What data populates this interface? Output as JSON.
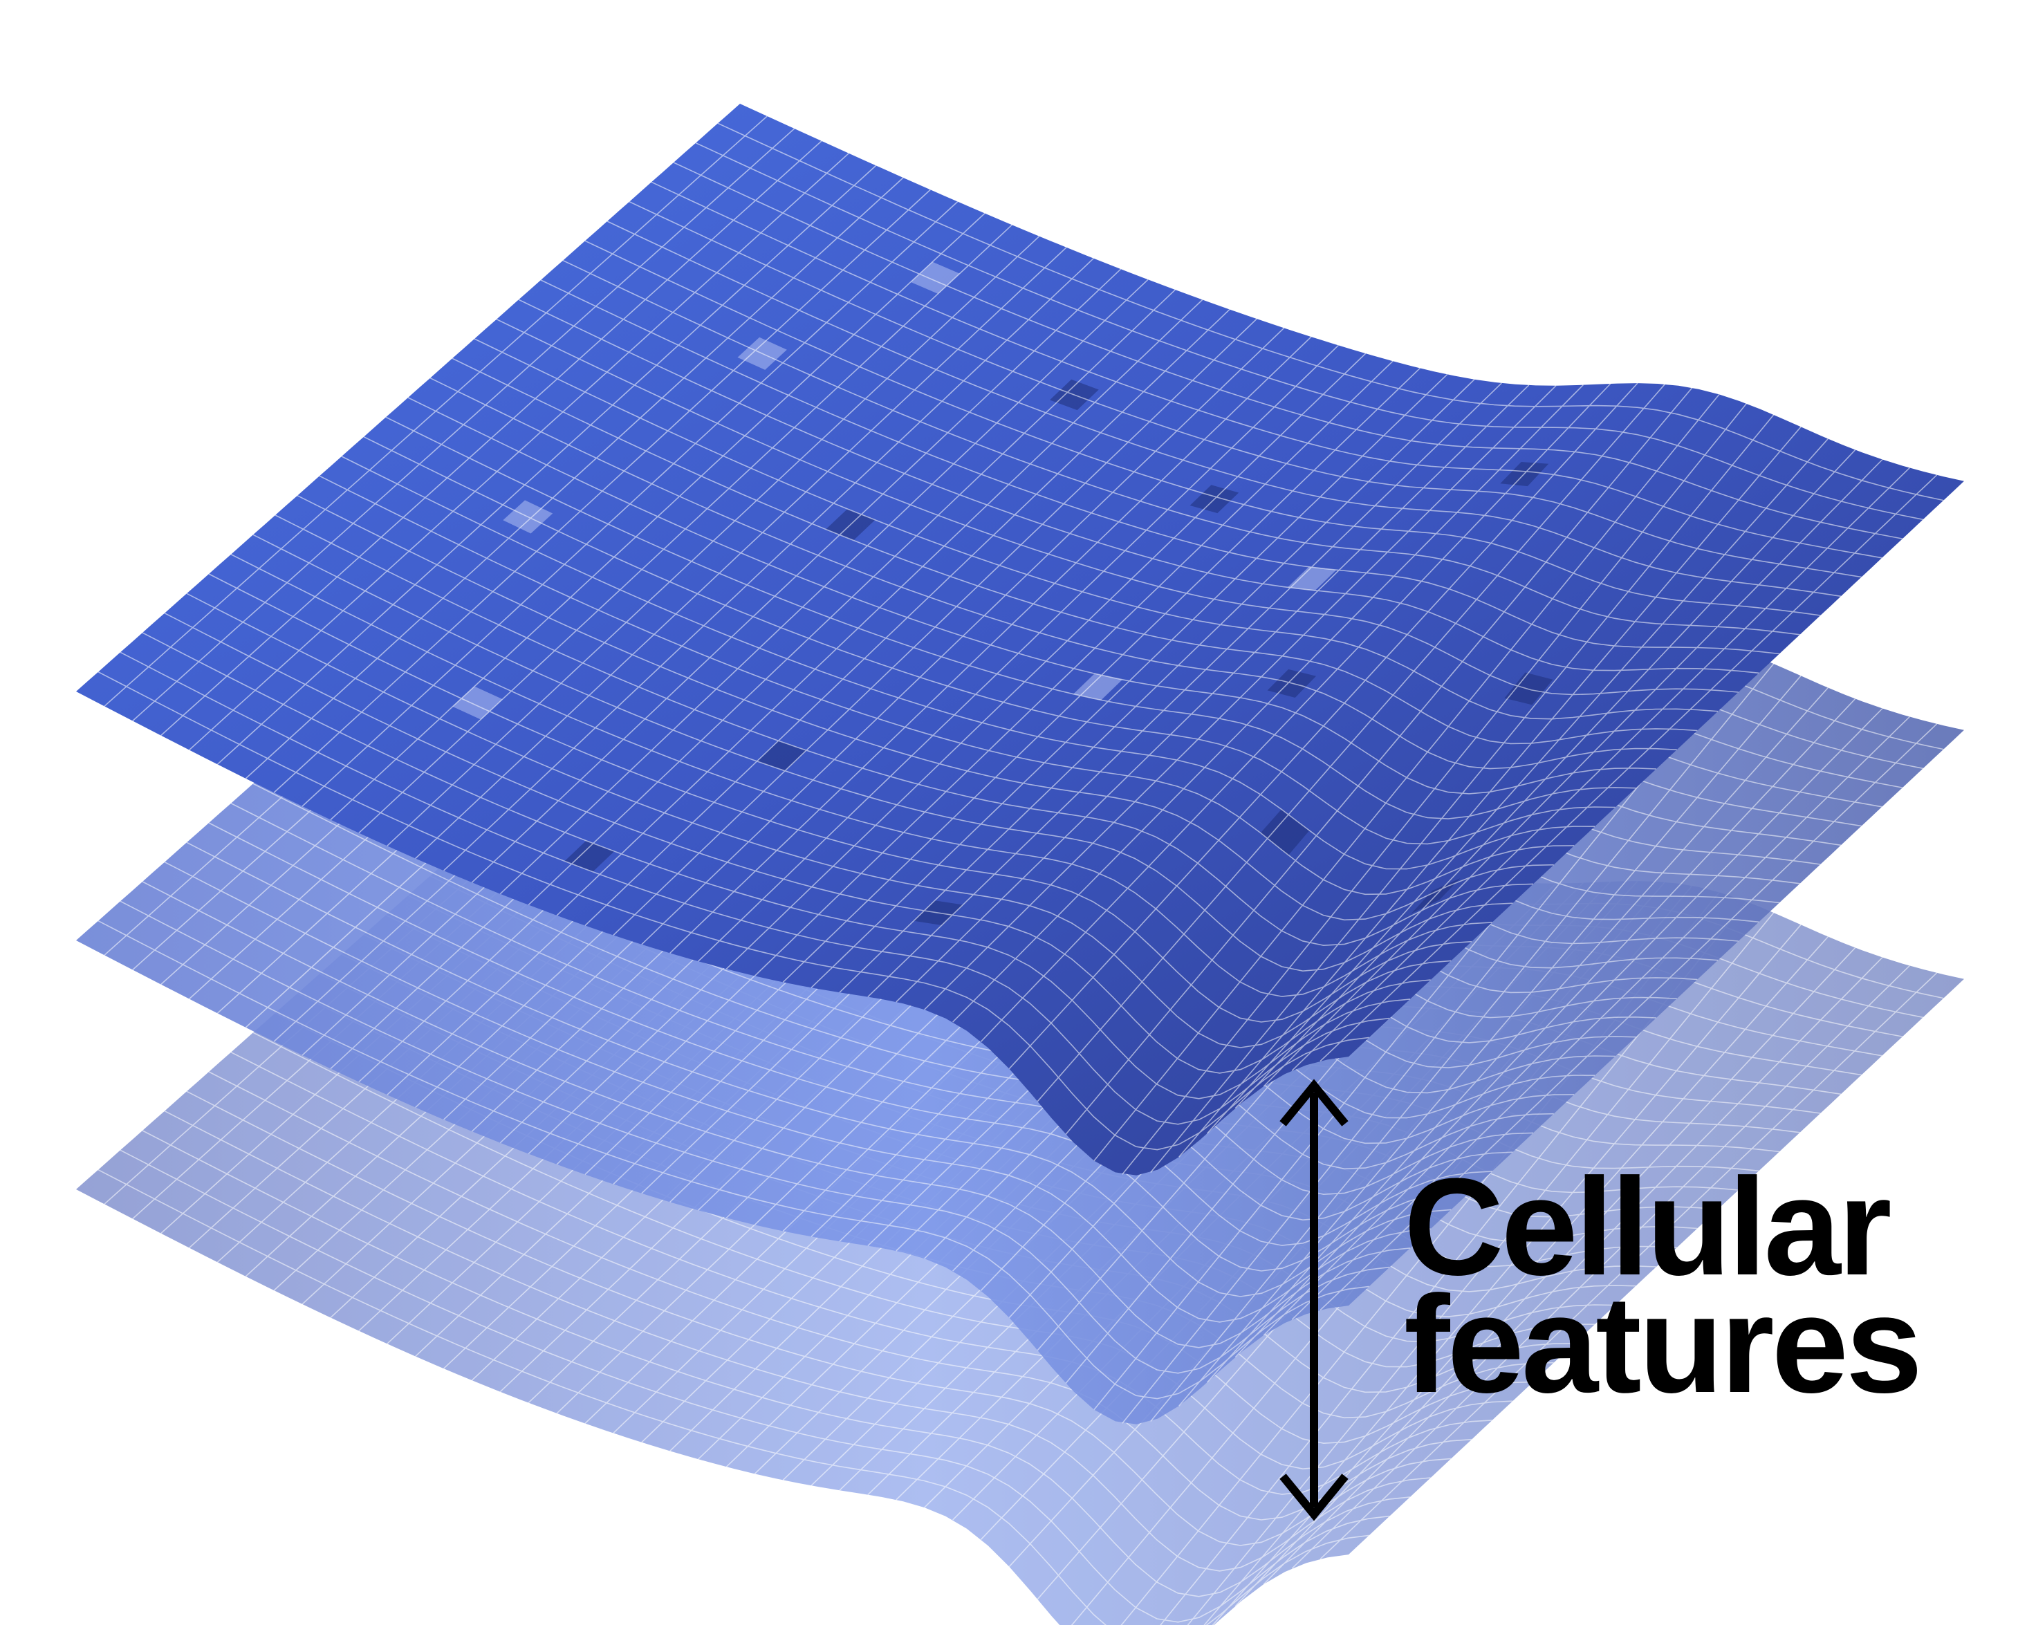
{
  "diagram": {
    "label": {
      "line1": "Cellular",
      "line2": "features"
    },
    "layers": [
      {
        "name": "layer-bottom",
        "colors": [
          "#8392cf",
          "#9fb3ef",
          "#8190c8"
        ],
        "opacity": 0.85
      },
      {
        "name": "layer-middle",
        "colors": [
          "#6c83d6",
          "#7f99ea",
          "#5b6db4"
        ],
        "opacity": 0.9
      },
      {
        "name": "layer-top",
        "colors": [
          "#3d58c4",
          "#4a6fe0",
          "#2c3b8c"
        ],
        "opacity": 1.0
      }
    ],
    "arrow_icon": "double-headed-arrow-icon",
    "colors": {
      "arrow": "#000000",
      "grid": "#ffffff",
      "text": "#000000"
    }
  }
}
